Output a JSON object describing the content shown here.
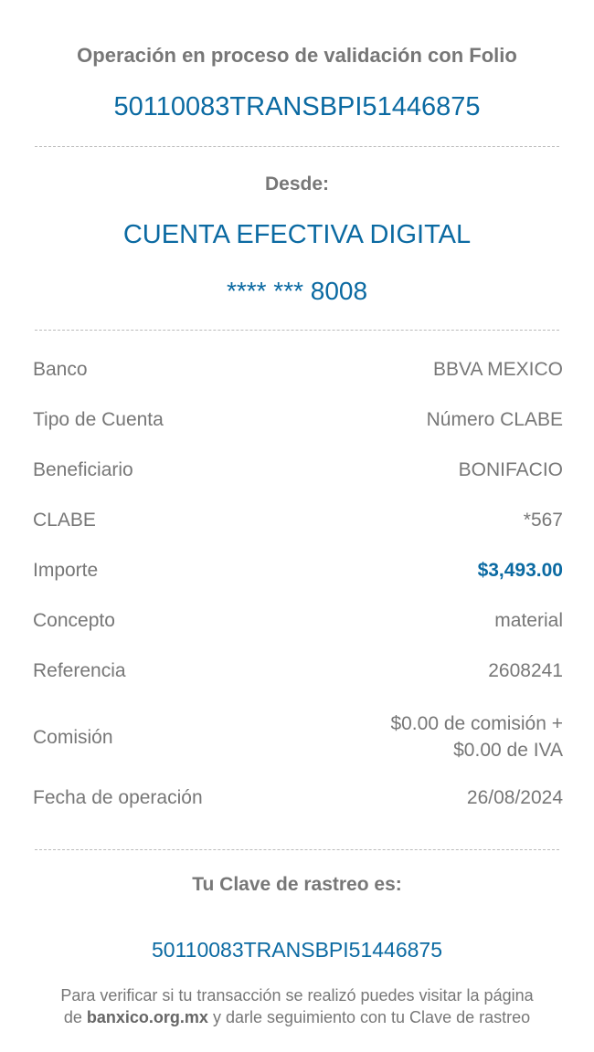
{
  "header": {
    "title": "Operación en proceso de validación con Folio",
    "folio": "50110083TRANSBPI51446875"
  },
  "origin": {
    "label": "Desde:",
    "account_name": "CUENTA EFECTIVA DIGITAL",
    "account_masked": "**** *** 8008"
  },
  "details": [
    {
      "label": "Banco",
      "value": "BBVA MEXICO"
    },
    {
      "label": "Tipo de Cuenta",
      "value": "Número CLABE"
    },
    {
      "label": "Beneficiario",
      "value": "BONIFACIO"
    },
    {
      "label": "CLABE",
      "value": "*567"
    },
    {
      "label": "Importe",
      "value": "$3,493.00"
    },
    {
      "label": "Concepto",
      "value": "material"
    },
    {
      "label": "Referencia",
      "value": "2608241"
    },
    {
      "label": "Comisión",
      "value_line1": "$0.00 de comisión +",
      "value_line2": "$0.00 de IVA"
    },
    {
      "label": "Fecha de operación",
      "value": "26/08/2024"
    }
  ],
  "tracking": {
    "label": "Tu Clave de rastreo es:",
    "code": "50110083TRANSBPI51446875",
    "note_part1": "Para verificar si tu transacción se realizó puedes visitar la página de ",
    "note_link": "banxico.org.mx",
    "note_part2": " y darle seguimiento con tu Clave de rastreo"
  },
  "colors": {
    "accent": "#0b6aa2",
    "text": "#777777"
  }
}
